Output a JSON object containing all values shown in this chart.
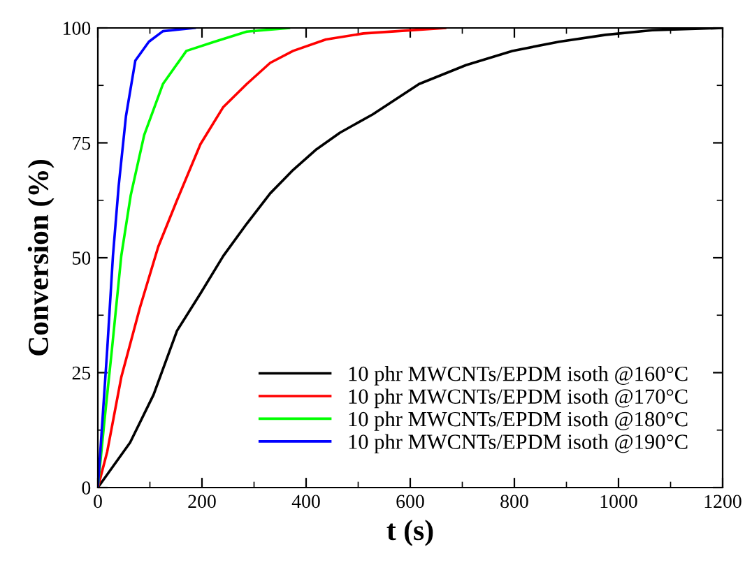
{
  "chart_data": {
    "type": "line",
    "xlabel": "t (s)",
    "ylabel": "Conversion (%)",
    "xlim": [
      0,
      1200
    ],
    "ylim": [
      0,
      100
    ],
    "xticks": [
      0,
      200,
      400,
      600,
      800,
      1000,
      1200
    ],
    "yticks": [
      0,
      25,
      50,
      75,
      100
    ],
    "grid": false,
    "legend": "bottom right",
    "line_style": "solid",
    "marker": "none",
    "series": [
      {
        "name": "10 phr MWCNTs/EPDM isoth @160°C",
        "color": "#000000",
        "x": [
          0,
          62,
          107,
          152,
          197,
          241,
          286,
          331,
          375,
          420,
          465,
          528,
          617,
          707,
          796,
          886,
          975,
          1065,
          1200
        ],
        "values": [
          0,
          9.8,
          20.2,
          34.1,
          42.2,
          50.4,
          57.4,
          64.0,
          69.1,
          73.6,
          77.2,
          81.2,
          87.8,
          91.9,
          95,
          97,
          98.5,
          99.5,
          100
        ]
      },
      {
        "name": "10 phr MWCNTs/EPDM isoth @170°C",
        "color": "#ff0000",
        "x": [
          0,
          18,
          45,
          81,
          116,
          152,
          197,
          241,
          286,
          331,
          375,
          438,
          510,
          667
        ],
        "values": [
          0,
          7.8,
          24,
          39.2,
          52.4,
          62.5,
          74.7,
          82.8,
          87.8,
          92.4,
          95,
          97.5,
          98.8,
          100
        ]
      },
      {
        "name": "10 phr MWCNTs/EPDM isoth @180°C",
        "color": "#00ff00",
        "x": [
          0,
          13,
          27,
          45,
          63,
          89,
          125,
          170,
          224,
          286,
          367
        ],
        "values": [
          0,
          14.9,
          30,
          50.4,
          63.5,
          76.7,
          87.8,
          95,
          97,
          99.2,
          100
        ]
      },
      {
        "name": "10 phr MWCNTs/EPDM isoth @190°C",
        "color": "#0000ff",
        "x": [
          0,
          9,
          18,
          29,
          40,
          54,
          72,
          98,
          125,
          186
        ],
        "values": [
          0,
          14.9,
          30,
          50.4,
          65.6,
          80.8,
          92.9,
          97,
          99.3,
          100
        ]
      }
    ]
  }
}
